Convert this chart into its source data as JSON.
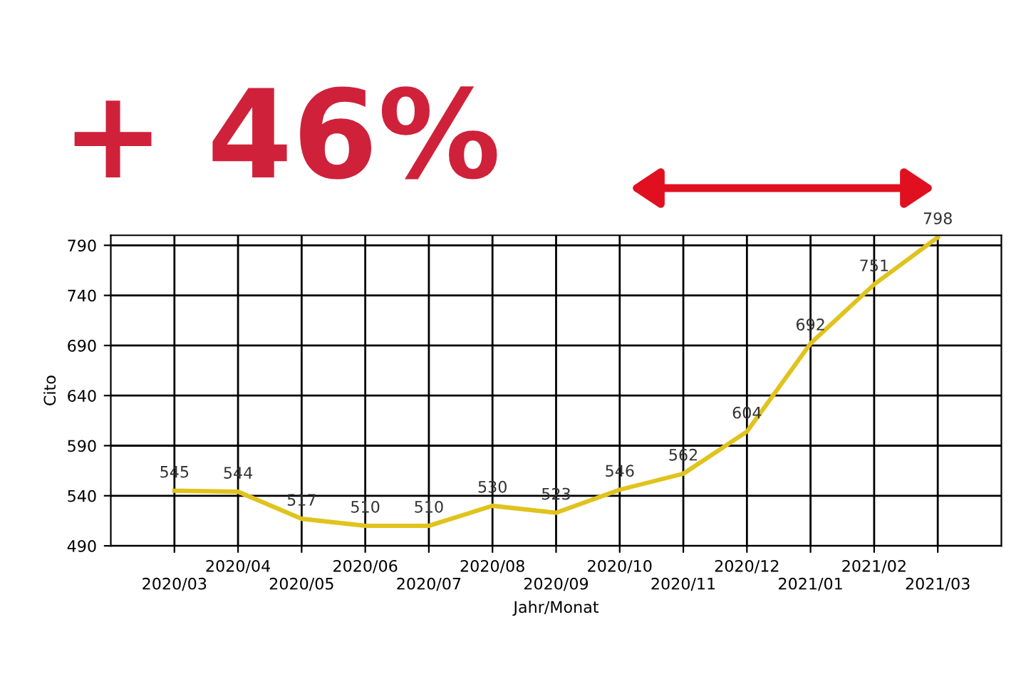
{
  "chart_data": {
    "type": "line",
    "title": "+ 46%",
    "xlabel": "Jahr/Monat",
    "ylabel": "Cito",
    "categories": [
      "2020/03",
      "2020/04",
      "2020/05",
      "2020/06",
      "2020/07",
      "2020/08",
      "2020/09",
      "2020/10",
      "2020/11",
      "2020/12",
      "2021/01",
      "2021/02",
      "2021/03"
    ],
    "series": [
      {
        "color": "#e0c31c",
        "values": [
          545,
          544,
          517,
          510,
          510,
          530,
          523,
          546,
          562,
          604,
          692,
          751,
          798
        ]
      }
    ],
    "ylim": [
      490,
      800
    ],
    "yticks": [
      490,
      540,
      590,
      640,
      690,
      740,
      790
    ],
    "grid": true,
    "data_labels": true,
    "marker": "none",
    "line_style": "solid"
  }
}
